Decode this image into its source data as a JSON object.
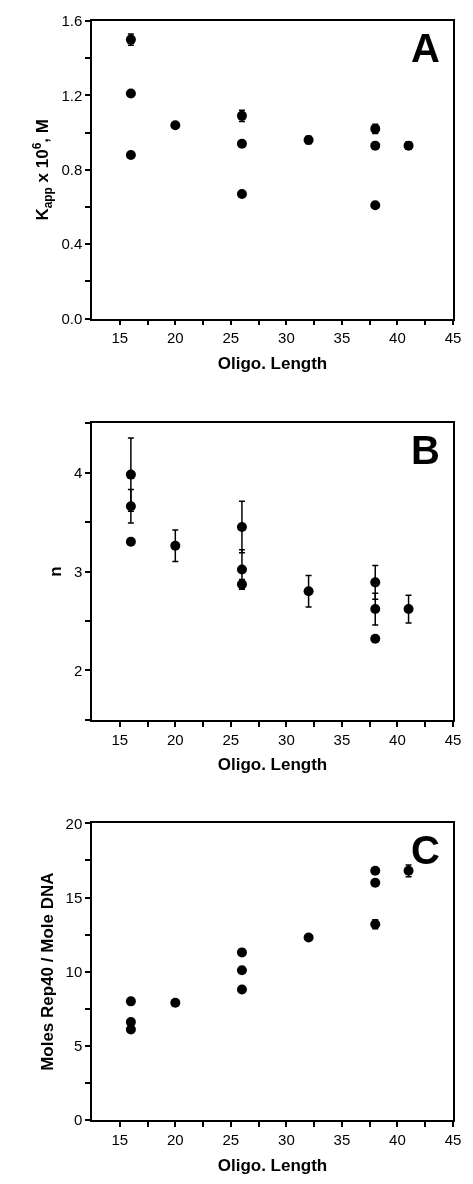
{
  "chart_data": [
    {
      "type": "scatter",
      "xlabel": "Oligo. Length",
      "ylabel": "K$_{app}$ x 10$^{6}$, M",
      "annotations": [
        "A"
      ],
      "marker": "circle",
      "xlim": [
        12.5,
        45
      ],
      "xticks": [
        15,
        20,
        25,
        30,
        35,
        40,
        45,
        {
          "value": 17.5,
          "label": null
        },
        {
          "value": 22.5,
          "label": null
        },
        {
          "value": 27.5,
          "label": null
        },
        {
          "value": 32.5,
          "label": null
        },
        {
          "value": 37.5,
          "label": null
        },
        {
          "value": 42.5,
          "label": null
        }
      ],
      "ylim": [
        0,
        1.6
      ],
      "yticks": [
        {
          "value": 0,
          "label": "0.0"
        },
        0.4,
        0.8,
        1.2,
        1.6,
        {
          "value": 0.2,
          "label": null
        },
        {
          "value": 0.6,
          "label": null
        },
        {
          "value": 1.0,
          "label": null
        },
        {
          "value": 1.4,
          "label": null
        }
      ],
      "series": [
        {
          "color": "#000000",
          "x": [
            16,
            16,
            16,
            20,
            26,
            26,
            26,
            32,
            38,
            38,
            38,
            41
          ],
          "values": [
            1.5,
            1.21,
            0.88,
            1.04,
            1.09,
            0.94,
            0.67,
            0.96,
            1.02,
            0.93,
            0.61,
            0.93
          ],
          "errors": [
            0.03,
            null,
            null,
            null,
            0.03,
            null,
            null,
            0.02,
            0.025,
            null,
            null,
            0.02
          ]
        }
      ]
    },
    {
      "type": "scatter",
      "xlabel": "Oligo. Length",
      "ylabel": "n",
      "annotations": [
        "B"
      ],
      "marker": "circle",
      "xlim": [
        12.5,
        45
      ],
      "xticks": [
        15,
        20,
        25,
        30,
        35,
        40,
        45,
        {
          "value": 17.5,
          "label": null
        },
        {
          "value": 22.5,
          "label": null
        },
        {
          "value": 27.5,
          "label": null
        },
        {
          "value": 32.5,
          "label": null
        },
        {
          "value": 37.5,
          "label": null
        },
        {
          "value": 42.5,
          "label": null
        }
      ],
      "ylim": [
        1.5,
        4.5
      ],
      "yticks": [
        2,
        3,
        4,
        {
          "value": 1.5,
          "label": null
        },
        {
          "value": 2.5,
          "label": null
        },
        {
          "value": 3.5,
          "label": null
        },
        {
          "value": 4.5,
          "label": null
        }
      ],
      "series": [
        {
          "color": "#000000",
          "x": [
            16,
            16,
            16,
            20,
            26,
            26,
            26,
            32,
            38,
            38,
            38,
            41
          ],
          "values": [
            3.98,
            3.66,
            3.3,
            3.26,
            3.45,
            3.02,
            2.87,
            2.8,
            2.89,
            2.62,
            2.32,
            2.62
          ],
          "errors": [
            0.37,
            0.17,
            null,
            0.16,
            0.26,
            0.2,
            0.05,
            0.16,
            0.17,
            0.16,
            null,
            0.14
          ]
        }
      ]
    },
    {
      "type": "scatter",
      "xlabel": "Oligo. Length",
      "ylabel": "Moles Rep40 / Mole DNA",
      "annotations": [
        "C"
      ],
      "marker": "circle",
      "xlim": [
        12.5,
        45
      ],
      "xticks": [
        15,
        20,
        25,
        30,
        35,
        40,
        45,
        {
          "value": 17.5,
          "label": null
        },
        {
          "value": 22.5,
          "label": null
        },
        {
          "value": 27.5,
          "label": null
        },
        {
          "value": 32.5,
          "label": null
        },
        {
          "value": 37.5,
          "label": null
        },
        {
          "value": 42.5,
          "label": null
        }
      ],
      "ylim": [
        0,
        20
      ],
      "yticks": [
        0,
        5,
        10,
        15,
        20,
        {
          "value": 2.5,
          "label": null
        },
        {
          "value": 7.5,
          "label": null
        },
        {
          "value": 12.5,
          "label": null
        },
        {
          "value": 17.5,
          "label": null
        }
      ],
      "series": [
        {
          "color": "#000000",
          "x": [
            16,
            16,
            16,
            20,
            26,
            26,
            26,
            32,
            38,
            38,
            38,
            41
          ],
          "values": [
            8.0,
            6.6,
            6.1,
            7.9,
            11.3,
            10.1,
            8.8,
            12.3,
            16.8,
            16.0,
            13.2,
            16.8
          ],
          "errors": [
            null,
            null,
            null,
            null,
            null,
            null,
            null,
            null,
            null,
            null,
            0.3,
            0.4
          ]
        }
      ]
    }
  ]
}
